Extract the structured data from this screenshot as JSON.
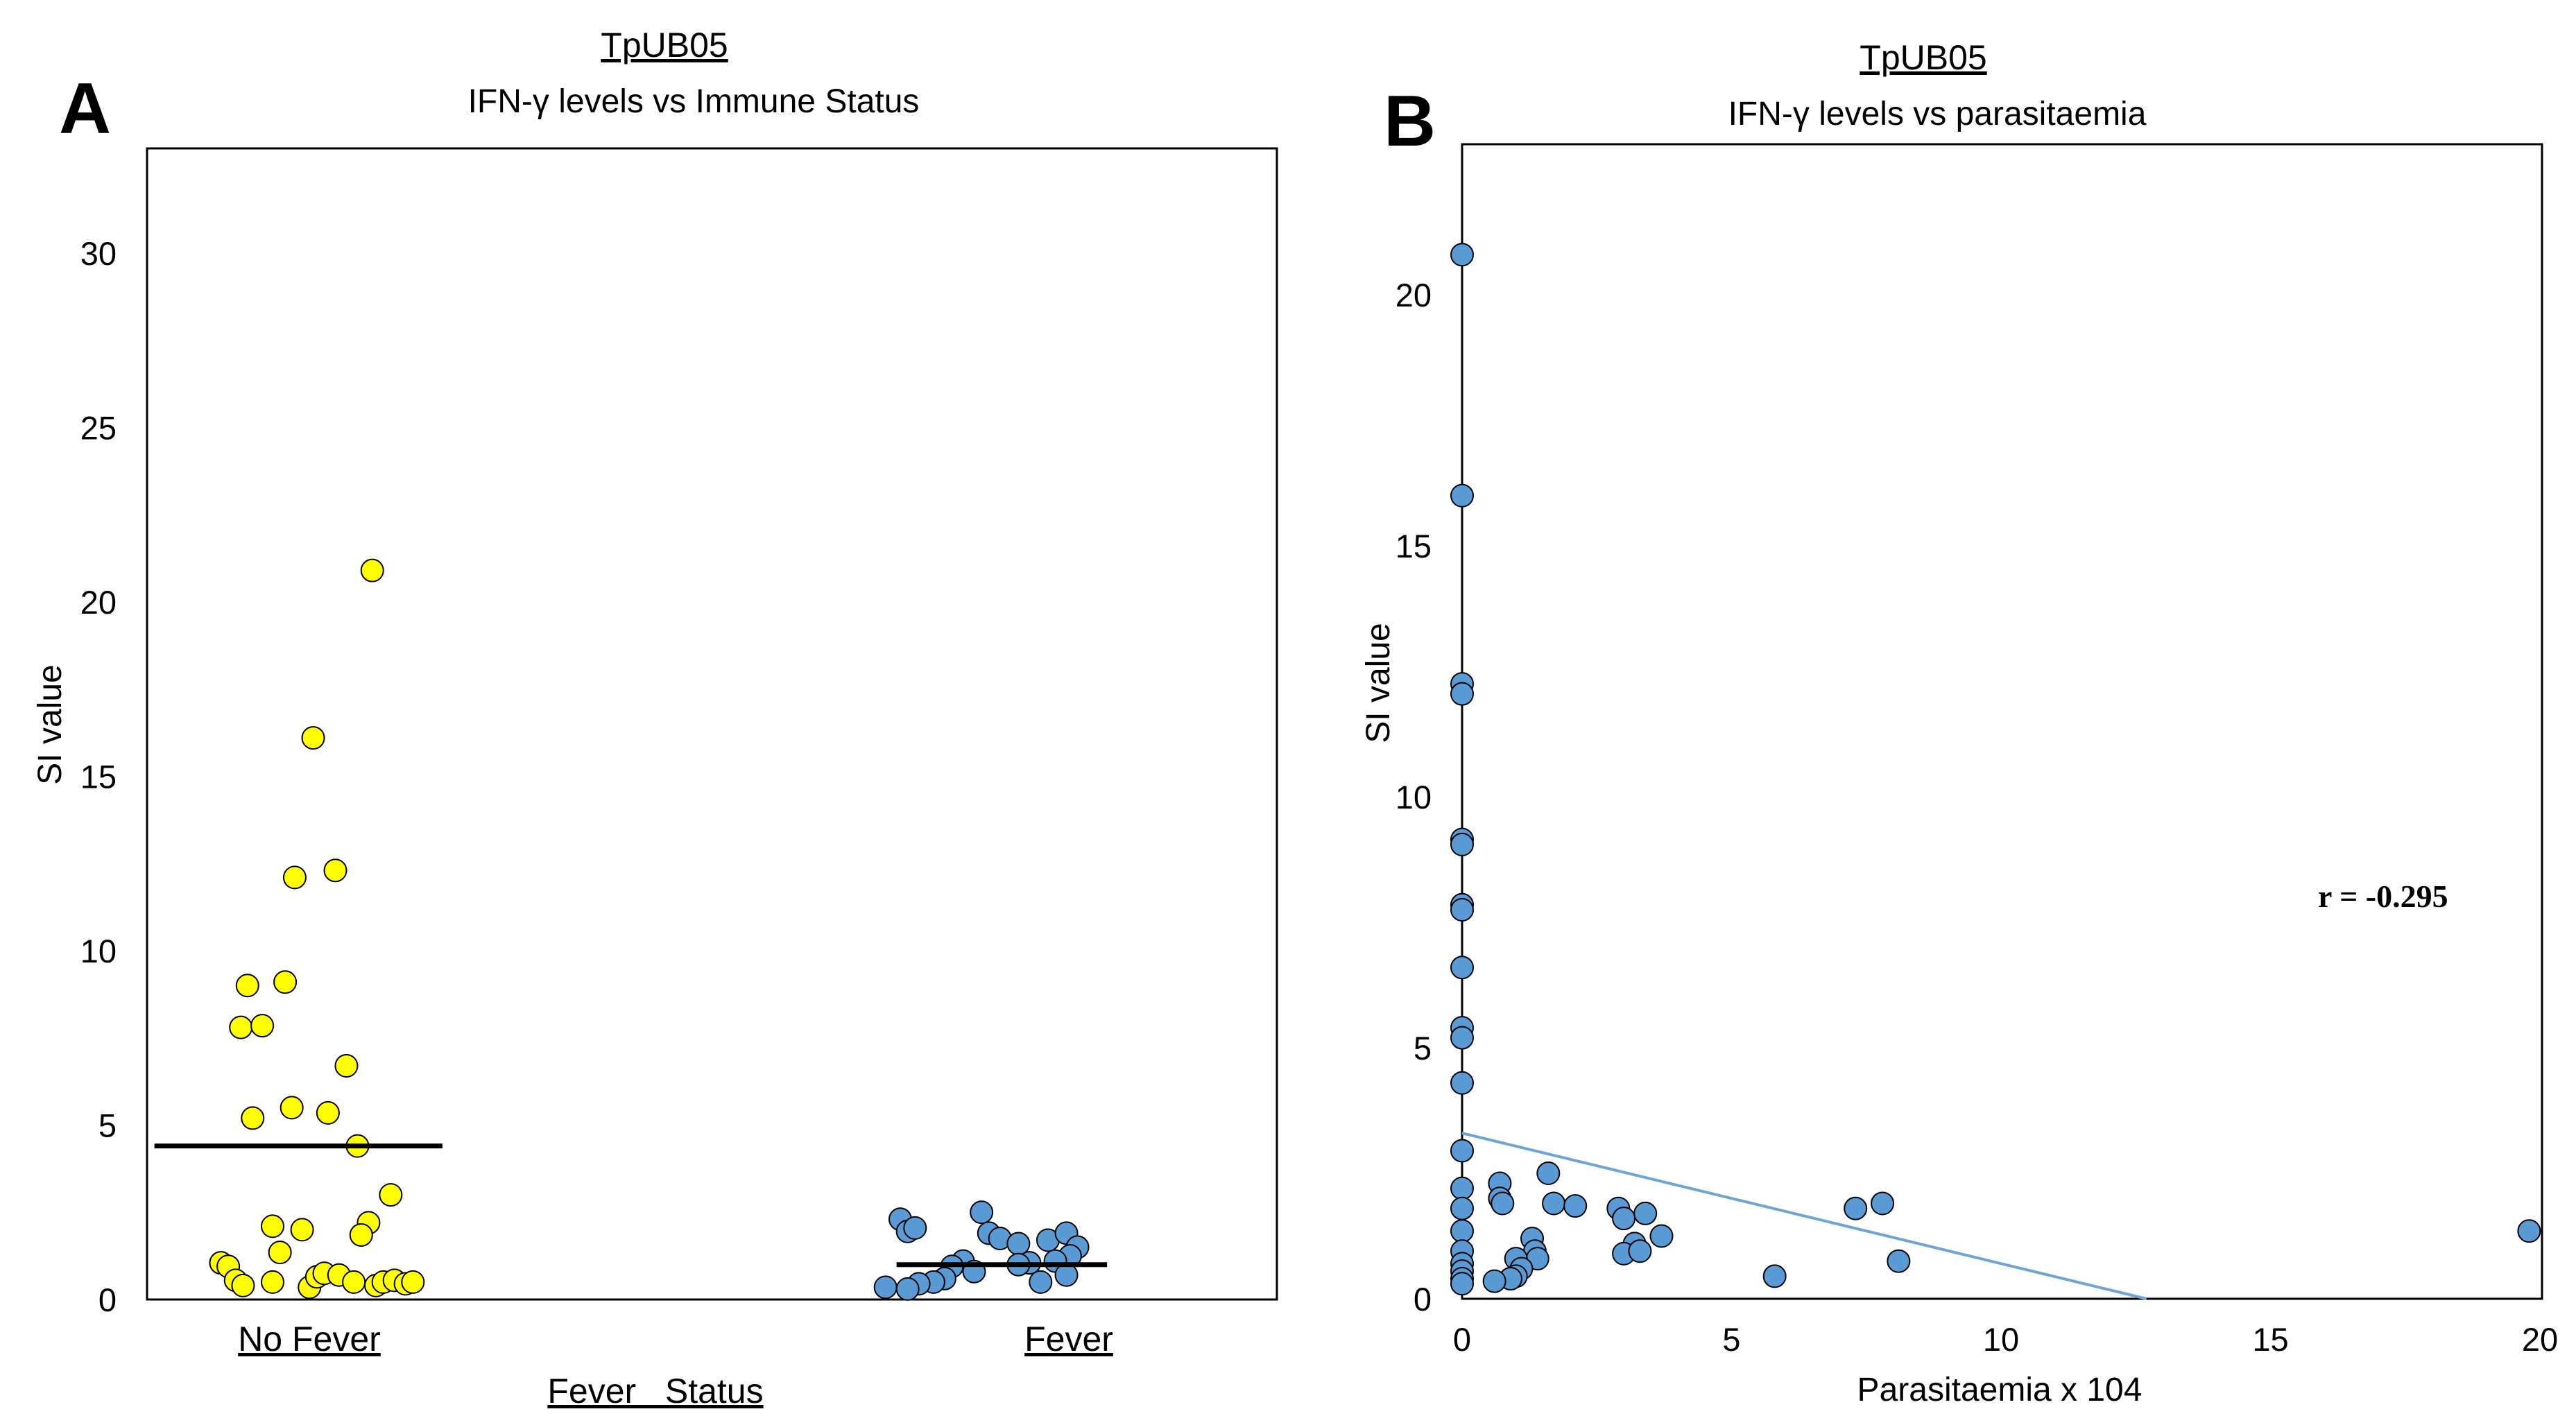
{
  "colors": {
    "no_fever_fill": "#FFFF00",
    "fever_fill": "#5B9BD5",
    "point_stroke": "#000000",
    "median_line": "#000000",
    "trend_line": "#6FA4D4",
    "frame": "#000000"
  },
  "chart_data": [
    {
      "panel": "A",
      "type": "scatter",
      "title": "TpUB05",
      "subtitle": "IFN-γ levels vs Immune Status",
      "xlabel": "Fever   Status",
      "ylabel": "SI value",
      "categories": [
        "No Fever",
        "Fever"
      ],
      "ylim": [
        0,
        33
      ],
      "yticks": [
        0,
        5,
        10,
        15,
        20,
        25,
        30
      ],
      "ytick_labels": [
        "0",
        "5",
        "10",
        "15",
        "20",
        "25",
        "30"
      ],
      "category_x": [
        0.0,
        1.0
      ],
      "xlim": [
        -0.13,
        1.4
      ],
      "series": [
        {
          "name": "No Fever",
          "color": "#FFFF00",
          "median": 4.4,
          "median_span": [
            -0.12,
            0.27
          ],
          "points": [
            {
              "x": 0.175,
              "y": 20.9
            },
            {
              "x": 0.095,
              "y": 16.1
            },
            {
              "x": 0.125,
              "y": 12.3
            },
            {
              "x": 0.07,
              "y": 12.1
            },
            {
              "x": 0.006,
              "y": 9.0
            },
            {
              "x": 0.057,
              "y": 9.1
            },
            {
              "x": -0.003,
              "y": 7.8
            },
            {
              "x": 0.026,
              "y": 7.85
            },
            {
              "x": 0.14,
              "y": 6.7
            },
            {
              "x": 0.013,
              "y": 5.2
            },
            {
              "x": 0.066,
              "y": 5.5
            },
            {
              "x": 0.115,
              "y": 5.35
            },
            {
              "x": 0.155,
              "y": 4.4
            },
            {
              "x": 0.04,
              "y": 2.1
            },
            {
              "x": 0.08,
              "y": 2.0
            },
            {
              "x": 0.17,
              "y": 2.2
            },
            {
              "x": 0.16,
              "y": 1.85
            },
            {
              "x": 0.2,
              "y": 3.0
            },
            {
              "x": -0.03,
              "y": 1.05
            },
            {
              "x": -0.02,
              "y": 0.95
            },
            {
              "x": 0.05,
              "y": 1.35
            },
            {
              "x": -0.01,
              "y": 0.55
            },
            {
              "x": 0.0,
              "y": 0.4
            },
            {
              "x": 0.04,
              "y": 0.5
            },
            {
              "x": 0.09,
              "y": 0.35
            },
            {
              "x": 0.1,
              "y": 0.65
            },
            {
              "x": 0.11,
              "y": 0.75
            },
            {
              "x": 0.13,
              "y": 0.7
            },
            {
              "x": 0.15,
              "y": 0.5
            },
            {
              "x": 0.18,
              "y": 0.4
            },
            {
              "x": 0.19,
              "y": 0.5
            },
            {
              "x": 0.205,
              "y": 0.55
            },
            {
              "x": 0.22,
              "y": 0.45
            },
            {
              "x": 0.23,
              "y": 0.5
            }
          ]
        },
        {
          "name": "Fever",
          "color": "#5B9BD5",
          "median": 1.0,
          "median_span": [
            0.885,
            1.17
          ],
          "points": [
            {
              "x": 0.89,
              "y": 2.3
            },
            {
              "x": 0.9,
              "y": 1.95
            },
            {
              "x": 0.91,
              "y": 2.05
            },
            {
              "x": 1.0,
              "y": 2.5
            },
            {
              "x": 1.01,
              "y": 1.9
            },
            {
              "x": 1.025,
              "y": 1.75
            },
            {
              "x": 1.05,
              "y": 1.6
            },
            {
              "x": 1.09,
              "y": 1.7
            },
            {
              "x": 1.115,
              "y": 1.9
            },
            {
              "x": 1.13,
              "y": 1.5
            },
            {
              "x": 1.12,
              "y": 1.25
            },
            {
              "x": 1.1,
              "y": 1.1
            },
            {
              "x": 1.065,
              "y": 1.05
            },
            {
              "x": 1.05,
              "y": 1.0
            },
            {
              "x": 0.975,
              "y": 1.1
            },
            {
              "x": 0.96,
              "y": 0.95
            },
            {
              "x": 0.99,
              "y": 0.8
            },
            {
              "x": 0.95,
              "y": 0.6
            },
            {
              "x": 0.935,
              "y": 0.5
            },
            {
              "x": 0.915,
              "y": 0.45
            },
            {
              "x": 0.87,
              "y": 0.35
            },
            {
              "x": 0.9,
              "y": 0.3
            },
            {
              "x": 1.08,
              "y": 0.5
            },
            {
              "x": 1.115,
              "y": 0.7
            }
          ]
        }
      ]
    },
    {
      "panel": "B",
      "type": "scatter",
      "title": "TpUB05",
      "subtitle": "IFN-γ levels vs parasitaemia",
      "xlabel": "Parasitaemia x 104",
      "ylabel": "SI value",
      "xlim": [
        0,
        20
      ],
      "ylim": [
        0,
        23
      ],
      "xticks": [
        0,
        5,
        10,
        15,
        20
      ],
      "xtick_labels": [
        "0",
        "5",
        "10",
        "15",
        "20"
      ],
      "yticks": [
        0,
        5,
        10,
        15,
        20
      ],
      "ytick_labels": [
        "0",
        "5",
        "10",
        "15",
        "20"
      ],
      "annotation": "r = -0.295",
      "trendline": {
        "x": [
          0,
          12.7
        ],
        "y": [
          3.3,
          0
        ]
      },
      "series": [
        {
          "name": "SI value",
          "color": "#5B9BD5",
          "points": [
            {
              "x": 0,
              "y": 20.8
            },
            {
              "x": 0,
              "y": 16.0
            },
            {
              "x": 0,
              "y": 12.25
            },
            {
              "x": 0,
              "y": 12.05
            },
            {
              "x": 0,
              "y": 9.15
            },
            {
              "x": 0,
              "y": 9.05
            },
            {
              "x": 0,
              "y": 7.85
            },
            {
              "x": 0,
              "y": 7.75
            },
            {
              "x": 0,
              "y": 6.6
            },
            {
              "x": 0,
              "y": 5.4
            },
            {
              "x": 0,
              "y": 5.2
            },
            {
              "x": 0,
              "y": 4.3
            },
            {
              "x": 0,
              "y": 2.95
            },
            {
              "x": 0,
              "y": 2.2
            },
            {
              "x": 0,
              "y": 1.8
            },
            {
              "x": 0,
              "y": 1.35
            },
            {
              "x": 0,
              "y": 0.95
            },
            {
              "x": 0,
              "y": 0.7
            },
            {
              "x": 0,
              "y": 0.55
            },
            {
              "x": 0,
              "y": 0.4
            },
            {
              "x": 0,
              "y": 0.3
            },
            {
              "x": 0.7,
              "y": 2.3
            },
            {
              "x": 0.7,
              "y": 2.0
            },
            {
              "x": 0.75,
              "y": 1.9
            },
            {
              "x": 1.6,
              "y": 2.5
            },
            {
              "x": 1.7,
              "y": 1.9
            },
            {
              "x": 2.1,
              "y": 1.85
            },
            {
              "x": 2.9,
              "y": 1.8
            },
            {
              "x": 3.0,
              "y": 1.6
            },
            {
              "x": 3.4,
              "y": 1.7
            },
            {
              "x": 3.7,
              "y": 1.25
            },
            {
              "x": 3.2,
              "y": 1.1
            },
            {
              "x": 3.0,
              "y": 0.9
            },
            {
              "x": 3.3,
              "y": 0.95
            },
            {
              "x": 1.3,
              "y": 1.2
            },
            {
              "x": 1.35,
              "y": 0.95
            },
            {
              "x": 1.4,
              "y": 0.8
            },
            {
              "x": 1.0,
              "y": 0.8
            },
            {
              "x": 1.1,
              "y": 0.6
            },
            {
              "x": 1.0,
              "y": 0.45
            },
            {
              "x": 0.9,
              "y": 0.4
            },
            {
              "x": 0.6,
              "y": 0.35
            },
            {
              "x": 5.8,
              "y": 0.45
            },
            {
              "x": 7.3,
              "y": 1.8
            },
            {
              "x": 7.8,
              "y": 1.9
            },
            {
              "x": 8.1,
              "y": 0.75
            },
            {
              "x": 19.8,
              "y": 1.35
            }
          ]
        }
      ]
    }
  ]
}
